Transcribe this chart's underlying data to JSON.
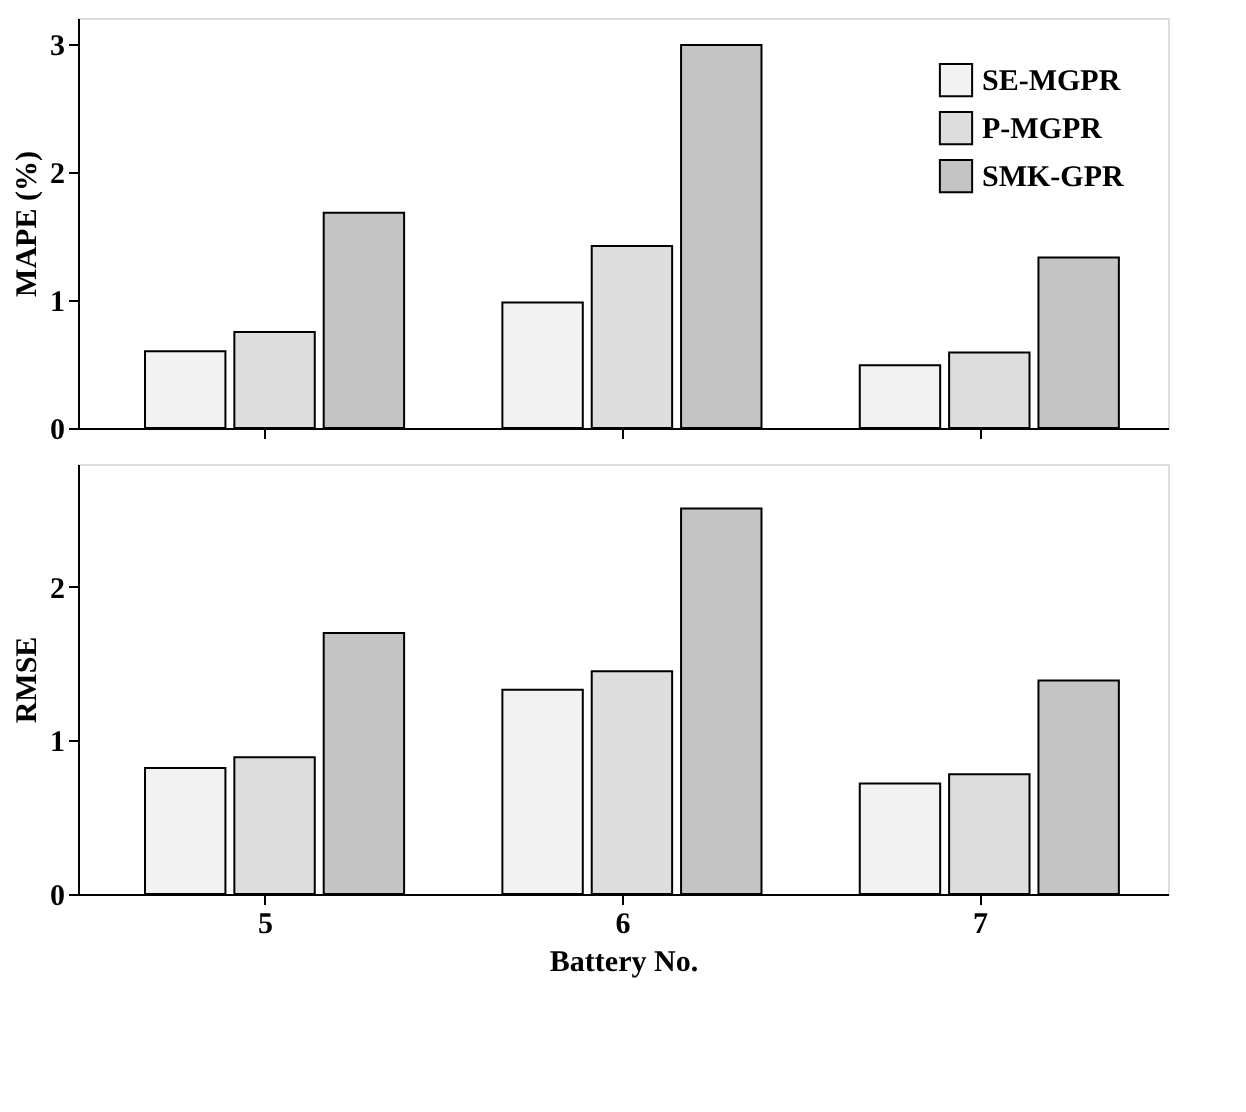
{
  "chart_data": [
    {
      "type": "bar",
      "ylabel": "MAPE (%)",
      "categories": [
        "5",
        "6",
        "7"
      ],
      "ylim": [
        0,
        3.2
      ],
      "yticks": [
        0,
        1,
        2,
        3
      ],
      "grid": false,
      "legend": "top right",
      "tick_labels": "y",
      "series": [
        {
          "name": "SE-MGPR",
          "color": "#f2f2f2",
          "values": [
            0.6,
            0.98,
            0.49
          ]
        },
        {
          "name": "P-MGPR",
          "color": "#dddddd",
          "values": [
            0.75,
            1.42,
            0.59
          ]
        },
        {
          "name": "SMK-GPR",
          "color": "#c4c4c4",
          "values": [
            1.68,
            2.99,
            1.33
          ]
        }
      ]
    },
    {
      "type": "bar",
      "xlabel": "Battery No.",
      "ylabel": "RMSE",
      "categories": [
        "5",
        "6",
        "7"
      ],
      "ylim": [
        0,
        2.8
      ],
      "yticks": [
        0,
        1,
        2
      ],
      "grid": false,
      "series": [
        {
          "name": "SE-MGPR",
          "color": "#f2f2f2",
          "values": [
            0.82,
            1.33,
            0.72
          ]
        },
        {
          "name": "P-MGPR",
          "color": "#dddddd",
          "values": [
            0.89,
            1.45,
            0.78
          ]
        },
        {
          "name": "SMK-GPR",
          "color": "#c4c4c4",
          "values": [
            1.7,
            2.51,
            1.39
          ]
        }
      ]
    }
  ]
}
